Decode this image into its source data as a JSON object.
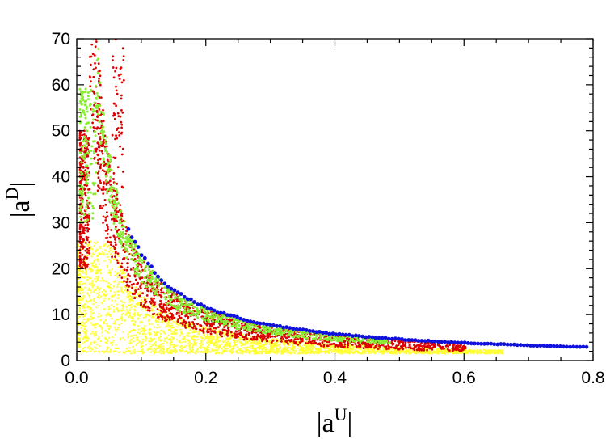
{
  "chart_data": {
    "type": "scatter",
    "title": "",
    "xlabel": {
      "base": "|a",
      "sup": "U",
      "end": "|"
    },
    "ylabel": {
      "base": "|a",
      "sup": "D",
      "end": "|"
    },
    "xlim": [
      0,
      0.8
    ],
    "ylim": [
      0,
      70
    ],
    "x_ticks": [
      "0.0",
      "0.2",
      "0.4",
      "0.6",
      "0.8"
    ],
    "y_ticks": [
      "0",
      "10",
      "20",
      "30",
      "40",
      "50",
      "60",
      "70"
    ],
    "grid": false,
    "series": [
      {
        "color": "#ffff33",
        "marker_size": "small",
        "region": "filled area below the boundary curve (dense)",
        "sample_points": [
          [
            0.01,
            2
          ],
          [
            0.01,
            10
          ],
          [
            0.01,
            20
          ],
          [
            0.02,
            5
          ],
          [
            0.03,
            15
          ],
          [
            0.05,
            3
          ],
          [
            0.05,
            12
          ],
          [
            0.08,
            8
          ],
          [
            0.1,
            4
          ],
          [
            0.1,
            10
          ],
          [
            0.15,
            6
          ],
          [
            0.2,
            3
          ],
          [
            0.2,
            8
          ],
          [
            0.25,
            5
          ],
          [
            0.3,
            2
          ],
          [
            0.3,
            6
          ],
          [
            0.35,
            4
          ],
          [
            0.4,
            3
          ],
          [
            0.45,
            4
          ],
          [
            0.5,
            2
          ],
          [
            0.5,
            3.5
          ],
          [
            0.55,
            2.5
          ],
          [
            0.6,
            3
          ],
          [
            0.65,
            2
          ]
        ]
      },
      {
        "color": "#dd0000",
        "marker_size": "small",
        "region": "band below the boundary curve",
        "sample_points": [
          [
            0.005,
            30
          ],
          [
            0.01,
            40
          ],
          [
            0.01,
            45
          ],
          [
            0.02,
            35
          ],
          [
            0.03,
            25
          ],
          [
            0.04,
            20
          ],
          [
            0.05,
            18
          ],
          [
            0.06,
            68
          ],
          [
            0.06,
            55
          ],
          [
            0.07,
            50
          ],
          [
            0.08,
            12
          ],
          [
            0.1,
            12
          ],
          [
            0.12,
            15
          ],
          [
            0.15,
            10
          ],
          [
            0.2,
            9
          ],
          [
            0.25,
            8
          ],
          [
            0.3,
            7
          ],
          [
            0.35,
            6
          ],
          [
            0.4,
            5.5
          ],
          [
            0.45,
            5
          ],
          [
            0.5,
            5
          ],
          [
            0.55,
            4.5
          ],
          [
            0.6,
            4
          ]
        ]
      },
      {
        "color": "#88ee33",
        "marker_size": "small",
        "region": "band just below the boundary curve",
        "sample_points": [
          [
            0.005,
            55
          ],
          [
            0.01,
            58
          ],
          [
            0.02,
            50
          ],
          [
            0.03,
            45
          ],
          [
            0.05,
            40
          ],
          [
            0.06,
            62
          ],
          [
            0.07,
            35
          ],
          [
            0.1,
            28
          ],
          [
            0.12,
            24
          ],
          [
            0.15,
            20
          ],
          [
            0.2,
            15
          ],
          [
            0.25,
            12
          ],
          [
            0.3,
            10
          ],
          [
            0.35,
            9
          ],
          [
            0.4,
            8
          ],
          [
            0.45,
            7
          ]
        ]
      },
      {
        "color": "#1111dd",
        "marker_size": "large",
        "region": "boundary curve",
        "points": [
          [
            0.08,
            35
          ],
          [
            0.1,
            28
          ],
          [
            0.12,
            23
          ],
          [
            0.15,
            19
          ],
          [
            0.17,
            17
          ],
          [
            0.2,
            15
          ],
          [
            0.25,
            12
          ],
          [
            0.3,
            10
          ],
          [
            0.35,
            8.8
          ],
          [
            0.4,
            7.5
          ],
          [
            0.45,
            6.8
          ],
          [
            0.5,
            6
          ],
          [
            0.55,
            5.3
          ],
          [
            0.6,
            4.7
          ],
          [
            0.65,
            4.2
          ],
          [
            0.7,
            3.6
          ],
          [
            0.75,
            3.2
          ],
          [
            0.79,
            2.8
          ]
        ]
      }
    ]
  }
}
